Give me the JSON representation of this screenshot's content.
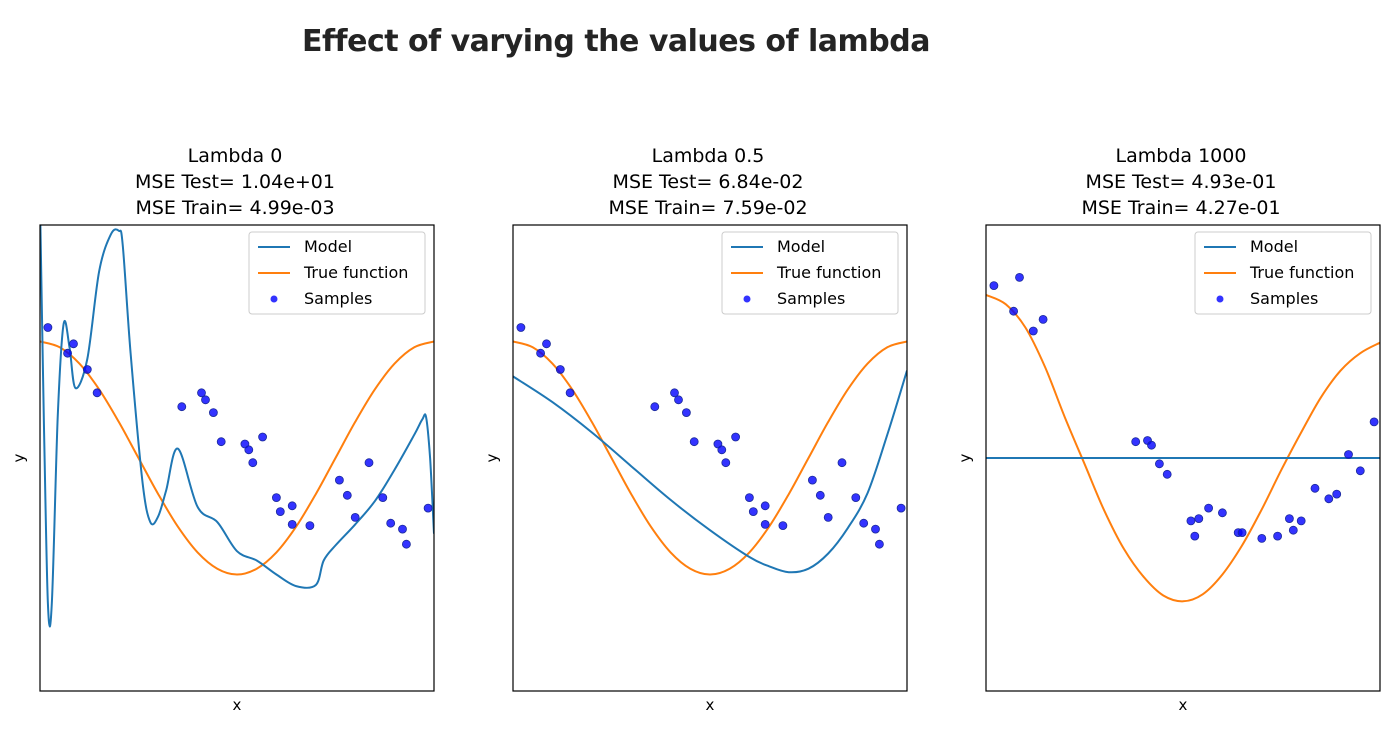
{
  "page": {
    "heading": "Effect of varying the values of lambda"
  },
  "colors": {
    "model": "#1f77b4",
    "true_function": "#ff7f0e",
    "samples": "#0000ff"
  },
  "chart_data": [
    {
      "type": "line",
      "title": [
        "Lambda 0",
        "MSE Test= 1.04e+01",
        "MSE Train= 4.99e-03"
      ],
      "xlabel": "x",
      "ylabel": "y",
      "xlim": [
        0,
        1
      ],
      "ylim": [
        -2,
        2
      ],
      "ticks_visible": false,
      "legend_position": "top-right",
      "legend": [
        "Model",
        "True function",
        "Samples"
      ],
      "series": [
        {
          "name": "Model",
          "x": [
            0.0,
            0.01,
            0.02,
            0.03,
            0.045,
            0.06,
            0.075,
            0.09,
            0.12,
            0.15,
            0.18,
            0.2,
            0.21,
            0.23,
            0.26,
            0.28,
            0.3,
            0.32,
            0.35,
            0.4,
            0.45,
            0.5,
            0.55,
            0.6,
            0.65,
            0.7,
            0.72,
            0.75,
            0.8,
            0.85,
            0.9,
            0.95,
            0.97,
            0.98,
            0.99,
            1.0
          ],
          "y": [
            2.2,
            0.3,
            -1.25,
            -1.25,
            0.35,
            1.15,
            0.95,
            0.6,
            0.85,
            1.6,
            1.92,
            1.95,
            1.83,
            0.9,
            -0.2,
            -0.55,
            -0.5,
            -0.28,
            0.08,
            -0.42,
            -0.55,
            -0.8,
            -0.88,
            -1.0,
            -1.1,
            -1.09,
            -0.88,
            -0.75,
            -0.57,
            -0.37,
            -0.1,
            0.2,
            0.33,
            0.35,
            0.0,
            -0.65
          ]
        },
        {
          "name": "True function",
          "x": [
            0.0,
            0.05,
            0.1,
            0.15,
            0.2,
            0.25,
            0.3,
            0.35,
            0.4,
            0.45,
            0.5,
            0.55,
            0.6,
            0.65,
            0.7,
            0.75,
            0.8,
            0.85,
            0.9,
            0.95,
            1.0
          ],
          "y": [
            1.0,
            0.95,
            0.81,
            0.59,
            0.31,
            0.0,
            -0.31,
            -0.59,
            -0.81,
            -0.95,
            -1.0,
            -0.95,
            -0.81,
            -0.59,
            -0.31,
            0.0,
            0.31,
            0.59,
            0.81,
            0.95,
            1.0
          ]
        }
      ],
      "samples": {
        "name": "Samples",
        "x": [
          0.02,
          0.07,
          0.085,
          0.12,
          0.145,
          0.36,
          0.41,
          0.42,
          0.44,
          0.46,
          0.52,
          0.53,
          0.54,
          0.565,
          0.6,
          0.61,
          0.64,
          0.64,
          0.685,
          0.76,
          0.78,
          0.8,
          0.835,
          0.87,
          0.89,
          0.92,
          0.93,
          0.985
        ],
        "y": [
          1.12,
          0.9,
          0.98,
          0.76,
          0.56,
          0.44,
          0.56,
          0.5,
          0.39,
          0.14,
          0.12,
          0.07,
          -0.04,
          0.18,
          -0.34,
          -0.46,
          -0.41,
          -0.57,
          -0.58,
          -0.19,
          -0.32,
          -0.51,
          -0.04,
          -0.34,
          -0.56,
          -0.61,
          -0.74,
          -0.43
        ]
      }
    },
    {
      "type": "line",
      "title": [
        "Lambda 0.5",
        "MSE Test= 6.84e-02",
        "MSE Train= 7.59e-02"
      ],
      "xlabel": "x",
      "ylabel": "y",
      "xlim": [
        0,
        1
      ],
      "ylim": [
        -2,
        2
      ],
      "ticks_visible": false,
      "legend_position": "top-right",
      "legend": [
        "Model",
        "True function",
        "Samples"
      ],
      "series": [
        {
          "name": "Model",
          "x": [
            0.0,
            0.1,
            0.2,
            0.3,
            0.4,
            0.5,
            0.6,
            0.65,
            0.7,
            0.75,
            0.8,
            0.85,
            0.9,
            0.95,
            1.0
          ],
          "y": [
            0.7,
            0.48,
            0.22,
            -0.07,
            -0.36,
            -0.62,
            -0.85,
            -0.93,
            -0.98,
            -0.95,
            -0.82,
            -0.6,
            -0.3,
            0.2,
            0.75
          ]
        },
        {
          "name": "True function",
          "x": [
            0.0,
            0.05,
            0.1,
            0.15,
            0.2,
            0.25,
            0.3,
            0.35,
            0.4,
            0.45,
            0.5,
            0.55,
            0.6,
            0.65,
            0.7,
            0.75,
            0.8,
            0.85,
            0.9,
            0.95,
            1.0
          ],
          "y": [
            1.0,
            0.95,
            0.81,
            0.59,
            0.31,
            0.0,
            -0.31,
            -0.59,
            -0.81,
            -0.95,
            -1.0,
            -0.95,
            -0.81,
            -0.59,
            -0.31,
            0.0,
            0.31,
            0.59,
            0.81,
            0.95,
            1.0
          ]
        }
      ],
      "samples": {
        "name": "Samples",
        "x": [
          0.02,
          0.07,
          0.085,
          0.12,
          0.145,
          0.36,
          0.41,
          0.42,
          0.44,
          0.46,
          0.52,
          0.53,
          0.54,
          0.565,
          0.6,
          0.61,
          0.64,
          0.64,
          0.685,
          0.76,
          0.78,
          0.8,
          0.835,
          0.87,
          0.89,
          0.92,
          0.93,
          0.985
        ],
        "y": [
          1.12,
          0.9,
          0.98,
          0.76,
          0.56,
          0.44,
          0.56,
          0.5,
          0.39,
          0.14,
          0.12,
          0.07,
          -0.04,
          0.18,
          -0.34,
          -0.46,
          -0.41,
          -0.57,
          -0.58,
          -0.19,
          -0.32,
          -0.51,
          -0.04,
          -0.34,
          -0.56,
          -0.61,
          -0.74,
          -0.43
        ]
      }
    },
    {
      "type": "line",
      "title": [
        "Lambda 1000",
        "MSE Test= 4.93e-01",
        "MSE Train= 4.27e-01"
      ],
      "xlabel": "x",
      "ylabel": "y",
      "xlim": [
        0,
        1
      ],
      "ylim": [
        -2,
        2
      ],
      "ticks_visible": false,
      "legend_position": "top-right",
      "legend": [
        "Model",
        "True function",
        "Samples"
      ],
      "series": [
        {
          "name": "Model",
          "x": [
            0.0,
            1.0
          ],
          "y": [
            0.0,
            0.0
          ]
        },
        {
          "name": "True function",
          "x": [
            0.0,
            0.05,
            0.1,
            0.15,
            0.2,
            0.25,
            0.3,
            0.35,
            0.4,
            0.45,
            0.5,
            0.55,
            0.6,
            0.65,
            0.7,
            0.75,
            0.8,
            0.85,
            0.9,
            0.95,
            1.0
          ],
          "y": [
            1.4,
            1.32,
            1.12,
            0.78,
            0.35,
            -0.05,
            -0.45,
            -0.78,
            -1.02,
            -1.18,
            -1.23,
            -1.17,
            -1.0,
            -0.75,
            -0.44,
            -0.1,
            0.22,
            0.52,
            0.75,
            0.9,
            0.99
          ]
        }
      ],
      "samples": {
        "name": "Samples",
        "x": [
          0.02,
          0.07,
          0.085,
          0.12,
          0.145,
          0.38,
          0.41,
          0.42,
          0.44,
          0.46,
          0.52,
          0.53,
          0.54,
          0.565,
          0.6,
          0.64,
          0.65,
          0.7,
          0.74,
          0.77,
          0.78,
          0.8,
          0.835,
          0.87,
          0.89,
          0.92,
          0.95,
          0.985
        ],
        "y": [
          1.48,
          1.26,
          1.55,
          1.09,
          1.19,
          0.14,
          0.15,
          0.11,
          -0.05,
          -0.14,
          -0.54,
          -0.67,
          -0.52,
          -0.43,
          -0.47,
          -0.64,
          -0.64,
          -0.69,
          -0.67,
          -0.52,
          -0.62,
          -0.54,
          -0.26,
          -0.35,
          -0.31,
          0.03,
          -0.11,
          0.31
        ]
      }
    }
  ]
}
